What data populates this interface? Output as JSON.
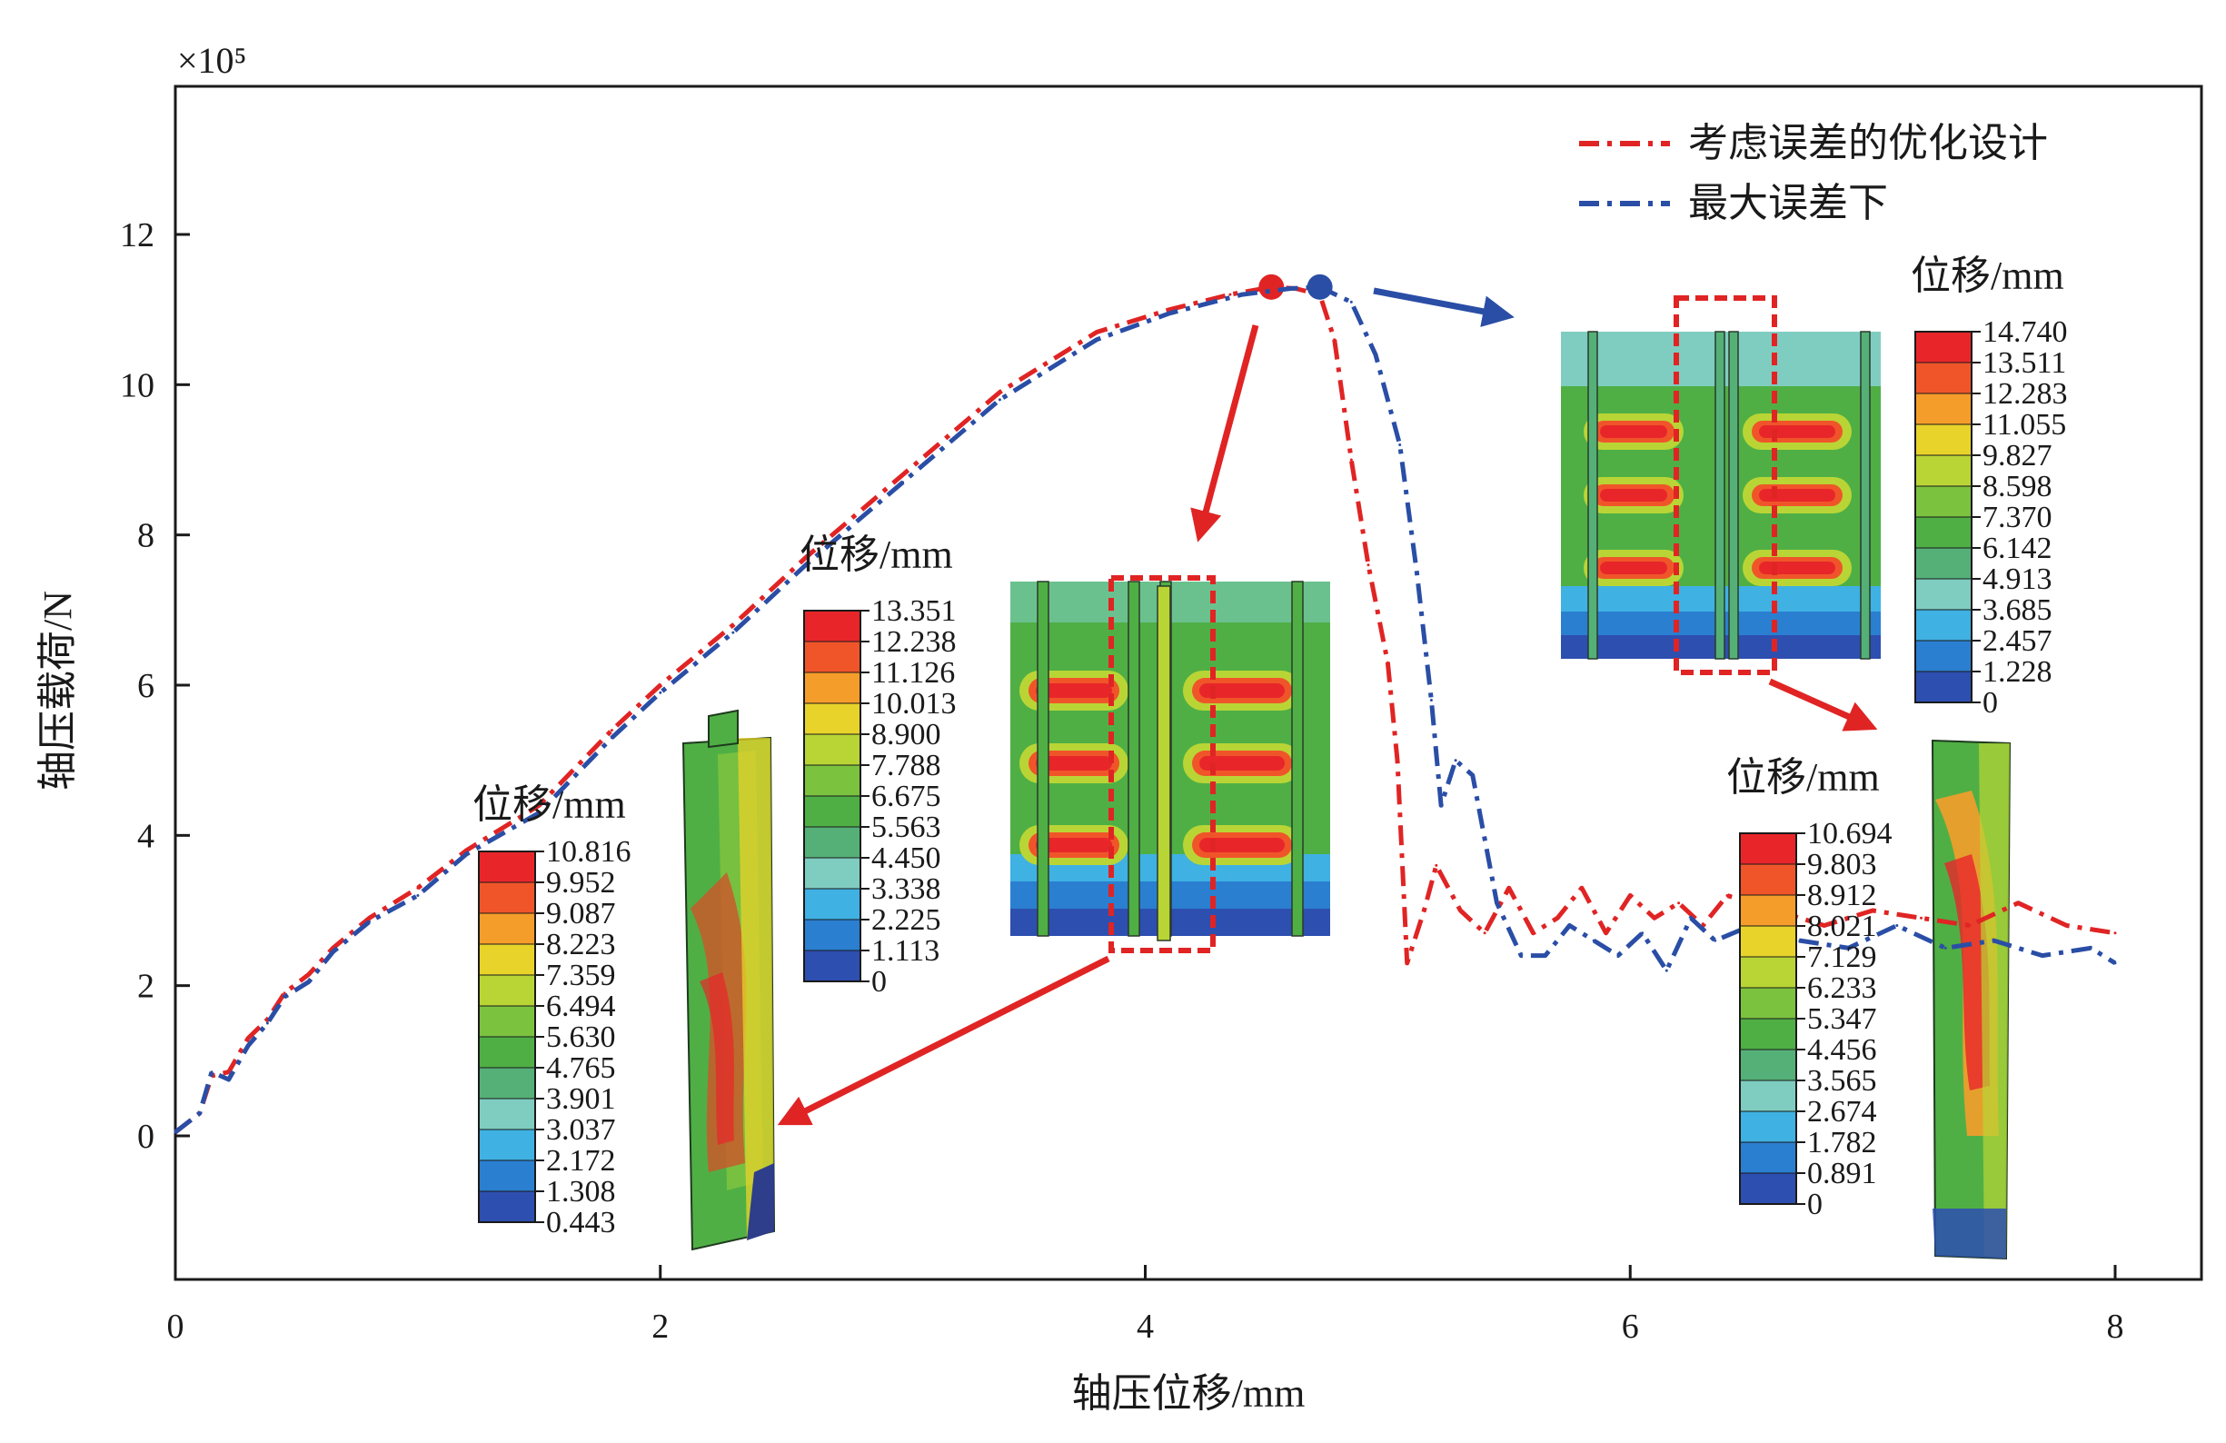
{
  "chart_data": {
    "type": "line",
    "title": "",
    "xlabel": "轴压位移/mm",
    "ylabel": "轴压载荷/N",
    "y_multiplier": "×10⁵",
    "xlim": [
      0,
      8.3
    ],
    "ylim": [
      -1.9,
      14.2
    ],
    "xticks": [
      0,
      2,
      4,
      6,
      8
    ],
    "yticks": [
      0,
      2,
      4,
      6,
      8,
      10,
      12
    ],
    "grid": false,
    "legend_position": "top-right",
    "series": [
      {
        "name": "考虑误差的优化设计",
        "color": "#e02424",
        "dash": "dashdot",
        "x": [
          0,
          0.1,
          0.15,
          0.22,
          0.3,
          0.38,
          0.45,
          0.55,
          0.65,
          0.8,
          1.0,
          1.2,
          1.5,
          1.8,
          2.0,
          2.3,
          2.6,
          3.0,
          3.4,
          3.8,
          4.1,
          4.35,
          4.52,
          4.62,
          4.72,
          4.78,
          4.85,
          4.92,
          5.0,
          5.04,
          5.08,
          5.15,
          5.2,
          5.3,
          5.4,
          5.5,
          5.6,
          5.7,
          5.8,
          5.9,
          6.0,
          6.1,
          6.2,
          6.3,
          6.4,
          6.6,
          6.8,
          7.0,
          7.2,
          7.4,
          7.6,
          7.8,
          8.0
        ],
        "y": [
          0.05,
          0.3,
          0.8,
          0.85,
          1.3,
          1.55,
          1.9,
          2.15,
          2.5,
          2.9,
          3.3,
          3.8,
          4.4,
          5.4,
          6.0,
          6.8,
          7.7,
          8.8,
          9.9,
          10.7,
          11.0,
          11.2,
          11.3,
          11.28,
          11.2,
          10.6,
          9.0,
          7.6,
          6.3,
          5.0,
          2.3,
          3.0,
          3.6,
          3.0,
          2.7,
          3.3,
          2.7,
          2.9,
          3.3,
          2.7,
          3.2,
          2.9,
          3.1,
          2.8,
          3.2,
          3.0,
          2.8,
          3.0,
          2.9,
          2.8,
          3.1,
          2.8,
          2.7
        ],
        "marker": {
          "x": 4.52,
          "y": 11.3
        }
      },
      {
        "name": "最大误差下",
        "color": "#2a4ea6",
        "dash": "dashdot",
        "x": [
          0,
          0.1,
          0.15,
          0.22,
          0.3,
          0.38,
          0.45,
          0.55,
          0.65,
          0.8,
          1.0,
          1.2,
          1.5,
          1.8,
          2.0,
          2.3,
          2.6,
          3.0,
          3.4,
          3.8,
          4.1,
          4.4,
          4.6,
          4.72,
          4.85,
          4.95,
          5.05,
          5.12,
          5.18,
          5.22,
          5.28,
          5.35,
          5.45,
          5.55,
          5.65,
          5.75,
          5.85,
          5.95,
          6.05,
          6.15,
          6.25,
          6.35,
          6.5,
          6.7,
          6.9,
          7.1,
          7.3,
          7.5,
          7.7,
          7.9,
          8.0
        ],
        "y": [
          0.05,
          0.3,
          0.85,
          0.75,
          1.2,
          1.5,
          1.85,
          2.05,
          2.45,
          2.85,
          3.2,
          3.75,
          4.3,
          5.3,
          5.9,
          6.7,
          7.6,
          8.7,
          9.8,
          10.6,
          10.95,
          11.2,
          11.28,
          11.3,
          11.1,
          10.4,
          9.2,
          7.5,
          5.8,
          4.4,
          5.0,
          4.8,
          3.1,
          2.4,
          2.4,
          2.8,
          2.6,
          2.4,
          2.7,
          2.2,
          2.9,
          2.6,
          2.8,
          2.6,
          2.5,
          2.8,
          2.5,
          2.6,
          2.4,
          2.5,
          2.3
        ],
        "marker": {
          "x": 4.72,
          "y": 11.3
        }
      }
    ],
    "colorbars": [
      {
        "title": "位移/mm",
        "values": [
          "10.816",
          "9.952",
          "9.087",
          "8.223",
          "7.359",
          "6.494",
          "5.630",
          "4.765",
          "3.901",
          "3.037",
          "2.172",
          "1.308",
          "0.443"
        ]
      },
      {
        "title": "位移/mm",
        "values": [
          "13.351",
          "12.238",
          "11.126",
          "10.013",
          "8.900",
          "7.788",
          "6.675",
          "5.563",
          "4.450",
          "3.338",
          "2.225",
          "1.113",
          "0"
        ]
      },
      {
        "title": "位移/mm",
        "values": [
          "14.740",
          "13.511",
          "12.283",
          "11.055",
          "9.827",
          "8.598",
          "7.370",
          "6.142",
          "4.913",
          "3.685",
          "2.457",
          "1.228",
          "0"
        ]
      },
      {
        "title": "位移/mm",
        "values": [
          "10.694",
          "9.803",
          "8.912",
          "8.021",
          "7.129",
          "6.233",
          "5.347",
          "4.456",
          "3.565",
          "2.674",
          "1.782",
          "0.891",
          "0"
        ]
      }
    ],
    "contour_colors": [
      "#e8262a",
      "#f0552a",
      "#f59d2a",
      "#e8d32a",
      "#b9d535",
      "#7bc23f",
      "#4faf45",
      "#55b078",
      "#7fcdc0",
      "#3fb1e3",
      "#2a7fd0",
      "#2d4fb0",
      "#1e2f96"
    ]
  }
}
